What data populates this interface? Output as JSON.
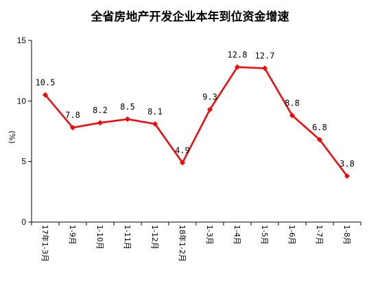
{
  "chart_data": {
    "type": "line",
    "title": "全省房地产开发企业本年到位资金增速",
    "xlabel": "",
    "ylabel": "(%)",
    "ylim": [
      0,
      15
    ],
    "yticks": [
      "0",
      "5",
      "10",
      "15"
    ],
    "categories": [
      "17年1-3月",
      "1-9月",
      "1-10月",
      "1-11月",
      "1-12月",
      "18年1-2月",
      "1-3月",
      "1-4月",
      "1-5月",
      "1-6月",
      "1-7月",
      "1-8月"
    ],
    "series": [
      {
        "values": [
          10.5,
          7.8,
          8.2,
          8.5,
          8.1,
          4.9,
          9.3,
          12.8,
          12.7,
          8.8,
          6.8,
          3.8
        ],
        "labels": [
          "10.5",
          "7.8",
          "8.2",
          "8.5",
          "8.1",
          "4.9",
          "9.3",
          "12.8",
          "12.7",
          "8.8",
          "6.8",
          "3.8"
        ]
      }
    ],
    "colors": {
      "series": "#ff0000",
      "axis": "#000000"
    },
    "grid": false,
    "legend": "none"
  }
}
